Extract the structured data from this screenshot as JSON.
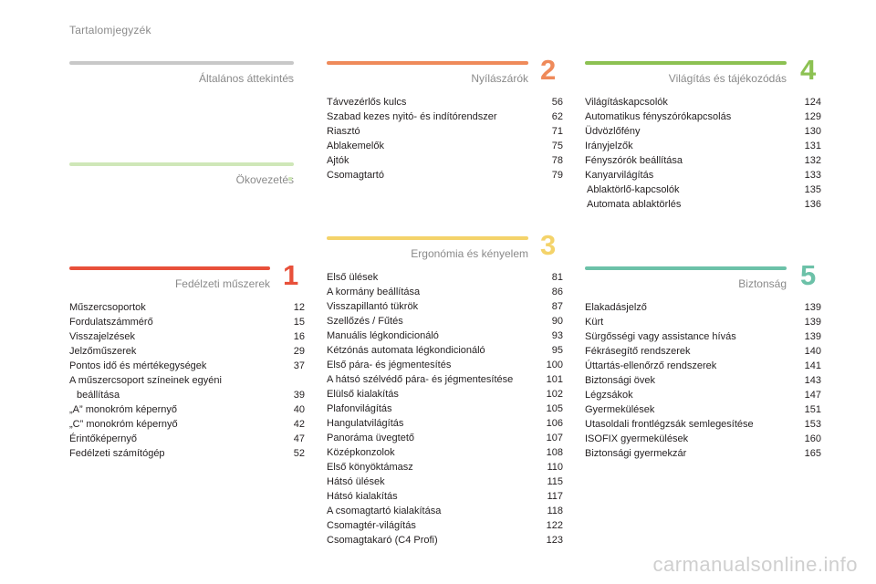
{
  "page_title": "Tartalomjegyzék",
  "watermark": "carmanualsonline.info",
  "sections": {
    "general": {
      "title": "Általános áttekintés",
      "number": "",
      "color": "#c8c8c8",
      "items": []
    },
    "eco": {
      "title": "Ökovezetés",
      "number": "",
      "color": "#cfe7b8",
      "items": []
    },
    "s1": {
      "title": "Fedélzeti műszerek",
      "number": "1",
      "color": "#e8503a",
      "items": [
        {
          "label": "Műszercsoportok",
          "page": "12"
        },
        {
          "label": "Fordulatszámmérő",
          "page": "15"
        },
        {
          "label": "Visszajelzések",
          "page": "16"
        },
        {
          "label": "Jelzőműszerek",
          "page": "29"
        },
        {
          "label": "Pontos idő és mértékegységek",
          "page": "37"
        },
        {
          "label": "A műszercsoport színeinek egyéni",
          "label2": "beállítása",
          "page": "39"
        },
        {
          "label": "„A” monokróm képernyő",
          "page": "40"
        },
        {
          "label": "„C” monokróm képernyő",
          "page": "42"
        },
        {
          "label": "Érintőképernyő",
          "page": "47"
        },
        {
          "label": "Fedélzeti számítógép",
          "page": "52"
        }
      ]
    },
    "s2": {
      "title": "Nyílászárók",
      "number": "2",
      "color": "#ef8a5a",
      "items": [
        {
          "label": "Távvezérlős kulcs",
          "page": "56"
        },
        {
          "label": "Szabad kezes nyitó- és indítórendszer",
          "page": "62"
        },
        {
          "label": "Riasztó",
          "page": "71"
        },
        {
          "label": "Ablakemelők",
          "page": "75"
        },
        {
          "label": "Ajtók",
          "page": "78"
        },
        {
          "label": "Csomagtartó",
          "page": "79"
        }
      ]
    },
    "s3": {
      "title": "Ergonómia és kényelem",
      "number": "3",
      "color": "#f4d36a",
      "items": [
        {
          "label": "Első ülések",
          "page": "81"
        },
        {
          "label": "A kormány beállítása",
          "page": "86"
        },
        {
          "label": "Visszapillantó tükrök",
          "page": "87"
        },
        {
          "label": "Szellőzés / Fűtés",
          "page": "90"
        },
        {
          "label": "Manuális légkondicionáló",
          "page": "93"
        },
        {
          "label": "Kétzónás automata légkondicionáló",
          "page": "95"
        },
        {
          "label": "Első pára- és jégmentesítés",
          "page": "100"
        },
        {
          "label": "A hátsó szélvédő pára- és jégmentesítése",
          "page": "101"
        },
        {
          "label": "Elülső kialakítás",
          "page": "102"
        },
        {
          "label": "Plafonvilágítás",
          "page": "105"
        },
        {
          "label": "Hangulatvilágítás",
          "page": "106"
        },
        {
          "label": "Panoráma üvegtető",
          "page": "107"
        },
        {
          "label": "Középkonzolok",
          "page": "108"
        },
        {
          "label": "Első könyöktámasz",
          "page": "110"
        },
        {
          "label": "Hátsó ülések",
          "page": "115"
        },
        {
          "label": "Hátsó kialakítás",
          "page": "117"
        },
        {
          "label": "A csomagtartó kialakítása",
          "page": "118"
        },
        {
          "label": "Csomagtér-világítás",
          "page": "122"
        },
        {
          "label": "Csomagtakaró (C4 Profi)",
          "page": "123"
        }
      ]
    },
    "s4": {
      "title": "Világítás és tájékozódás",
      "number": "4",
      "color": "#8cc152",
      "items": [
        {
          "label": "Világításkapcsolók",
          "page": "124"
        },
        {
          "label": "Automatikus fényszórókapcsolás",
          "page": "129"
        },
        {
          "label": "Üdvözlőfény",
          "page": "130"
        },
        {
          "label": "Irányjelzők",
          "page": "131"
        },
        {
          "label": "Fényszórók beállítása",
          "page": "132"
        },
        {
          "label": "Kanyarvilágítás",
          "page": "133"
        },
        {
          "label": "Ablaktörlő-kapcsolók",
          "page": "135",
          "indent": true
        },
        {
          "label": "Automata ablaktörlés",
          "page": "136",
          "indent": true
        }
      ]
    },
    "s5": {
      "title": "Biztonság",
      "number": "5",
      "color": "#6cc1a8",
      "items": [
        {
          "label": "Elakadásjelző",
          "page": "139"
        },
        {
          "label": "Kürt",
          "page": "139"
        },
        {
          "label": "Sürgősségi vagy assistance hívás",
          "page": "139"
        },
        {
          "label": "Fékrásegítő rendszerek",
          "page": "140"
        },
        {
          "label": "Úttartás-ellenőrző rendszerek",
          "page": "141"
        },
        {
          "label": "Biztonsági övek",
          "page": "143"
        },
        {
          "label": "Légzsákok",
          "page": "147"
        },
        {
          "label": "Gyermekülések",
          "page": "151"
        },
        {
          "label": "Utasoldali frontlégzsák semlegesítése",
          "page": "153"
        },
        {
          "label": "ISOFIX gyermekülések",
          "page": "160"
        },
        {
          "label": "Biztonsági gyermekzár",
          "page": "165"
        }
      ]
    }
  }
}
